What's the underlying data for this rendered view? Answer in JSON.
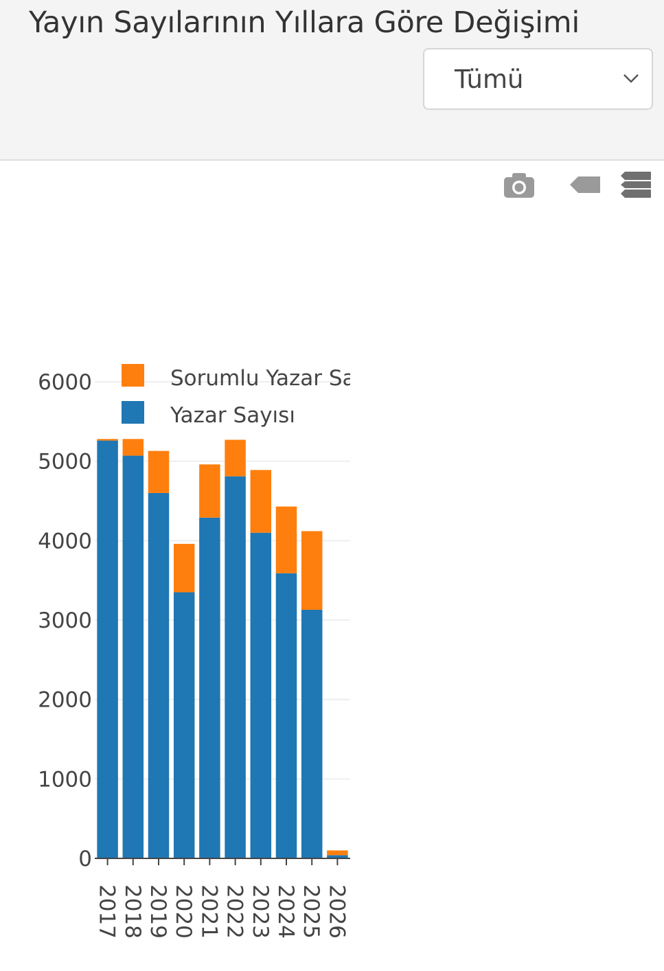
{
  "header": {
    "title": "Yayın Sayılarının Yıllara Göre Değişimi",
    "filter_value": "Tümü"
  },
  "toolbar": {
    "icons": [
      "camera-icon",
      "tag-icon",
      "layers-icon"
    ],
    "icon_color": "#999999"
  },
  "chart_data": {
    "type": "bar",
    "stacked": true,
    "categories": [
      "2017",
      "2018",
      "2019",
      "2020",
      "2021",
      "2022",
      "2023",
      "2024",
      "2025",
      "2026"
    ],
    "series": [
      {
        "name": "Yazar Sayısı",
        "color": "#1f77b4",
        "values": [
          5260,
          5070,
          4600,
          3350,
          4290,
          4810,
          4100,
          3590,
          3130,
          40
        ]
      },
      {
        "name": "Sorumlu Yazar Sa",
        "color": "#ff7f0e",
        "values": [
          20,
          210,
          530,
          610,
          670,
          460,
          790,
          840,
          990,
          60
        ]
      }
    ],
    "ylim": [
      0,
      6000
    ],
    "yticks": [
      0,
      1000,
      2000,
      3000,
      4000,
      5000,
      6000
    ],
    "grid": true,
    "legend_position": "top-left",
    "xtick_rotation": 90
  }
}
